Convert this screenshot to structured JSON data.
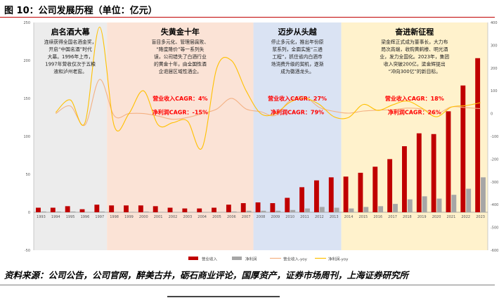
{
  "figure": {
    "title": "图 10：公司发展历程（单位：亿元）",
    "source": "资料来源：公司公告，公司官网，醉美古井，砺石商业评论，国厚资产，证券市场周刊，上海证券研究所"
  },
  "colors": {
    "revenue": "#c00000",
    "profit": "#a6a6a6",
    "revenue_yoy": "#f4b183",
    "profit_yoy": "#ffc000",
    "band1": "#ececec",
    "band2": "#fbe3d6",
    "band3": "#dae3f3",
    "band4": "#fff2cc",
    "cagr_text": "#ff0000"
  },
  "chart_data": {
    "type": "bar",
    "title": "公司发展历程（单位：亿元）",
    "categories": [
      "1993",
      "1994",
      "1995",
      "1996",
      "1997",
      "1998",
      "1999",
      "2000",
      "2001",
      "2002",
      "2003",
      "2004",
      "2005",
      "2006",
      "2007",
      "2008",
      "2009",
      "2010",
      "2011",
      "2012",
      "2013",
      "2014",
      "2015",
      "2016",
      "2017",
      "2018",
      "2019",
      "2020",
      "2021",
      "2022",
      "2023"
    ],
    "series": [
      {
        "name": "营业收入",
        "type": "bar",
        "axis": "left",
        "values": [
          6,
          6,
          8,
          4,
          10,
          9,
          9,
          9,
          8,
          6,
          5,
          5,
          6,
          10,
          12,
          13,
          12,
          19,
          33,
          42,
          46,
          47,
          52,
          60,
          70,
          87,
          104,
          103,
          133,
          167,
          203
        ]
      },
      {
        "name": "净利润",
        "type": "bar",
        "axis": "left",
        "values": [
          1,
          1,
          1,
          0.5,
          1,
          0.5,
          0.5,
          1,
          0.5,
          0.3,
          0.2,
          0.1,
          0.3,
          1,
          2,
          2,
          2,
          3,
          5,
          7,
          6,
          5,
          7,
          8,
          11,
          17,
          21,
          18,
          23,
          31,
          46
        ]
      },
      {
        "name": "营业收入-yoy",
        "type": "line",
        "axis": "right",
        "values": [
          null,
          0,
          33,
          -50,
          150,
          -10,
          0,
          0,
          -11,
          -25,
          -17,
          0,
          20,
          67,
          20,
          8,
          -8,
          58,
          74,
          27,
          10,
          2,
          11,
          15,
          17,
          24,
          20,
          -1,
          29,
          26,
          22
        ]
      },
      {
        "name": "净利润-yoy",
        "type": "line",
        "axis": "right",
        "values": [
          null,
          5,
          60,
          -40,
          380,
          -55,
          0,
          100,
          -50,
          -40,
          -33,
          -150,
          200,
          233,
          100,
          0,
          0,
          50,
          67,
          40,
          -14,
          -17,
          40,
          14,
          38,
          55,
          24,
          -14,
          28,
          35,
          48
        ]
      }
    ],
    "left_axis": {
      "min": -50,
      "max": 250,
      "ticks": [
        -50,
        0,
        50,
        100,
        150,
        200,
        250
      ]
    },
    "right_axis": {
      "min": -600,
      "max": 400,
      "ticks": [
        -600,
        -500,
        -400,
        -300,
        -200,
        -100,
        0,
        100,
        200,
        300,
        400
      ]
    },
    "legend": [
      "营业收入",
      "净利润",
      "营业收入-yoy",
      "净利润-yoy"
    ],
    "stages": [
      {
        "title": "启名酒大幕",
        "start": "1993",
        "end": "1997",
        "lines": [
          "连续获得全国名酒金奖，",
          "开启“中国名酒”时代",
          "大幕。1996年上市，",
          "1997年营收仅次于五粮",
          "液和泸州老窖。"
        ]
      },
      {
        "title": "失黄金十年",
        "start": "1998",
        "end": "2007",
        "lines": [
          "盲目多元化、管理层腐败、",
          "“降度降价”等一系列失",
          "误，公司错失了白酒行业",
          "的黄金十年，由全国性酒",
          "企退居区域性酒企。"
        ]
      },
      {
        "title": "迈步从头越",
        "start": "2008",
        "end": "2013",
        "lines": [
          "停止多元化，推出年份原",
          "浆系列，全面实施“三通",
          "工程”，抓住省内白酒市",
          "场消费升级的契机，逐渐",
          "成为徽酒龙头。"
        ]
      },
      {
        "title": "奋进新征程",
        "start": "2014",
        "end": "2023",
        "lines": [
          "梁金辉正式成为董事长，大力布",
          "局次高端，收购黄鹤楼、明光酒",
          "业，发力全国化。2023年，集团",
          "收入突破200亿，梁金辉提出",
          "“冲向300亿”的新目标。"
        ]
      }
    ],
    "cagr": [
      {
        "revenue": "营业收入CAGR：4%",
        "profit": "净利润CAGR：-15%"
      },
      {
        "revenue": "营业收入CAGR：27%",
        "profit": "净利润CAGR：79%"
      },
      {
        "revenue": "营业收入CAGR：18%",
        "profit": "净利润CAGR：26%"
      }
    ]
  }
}
